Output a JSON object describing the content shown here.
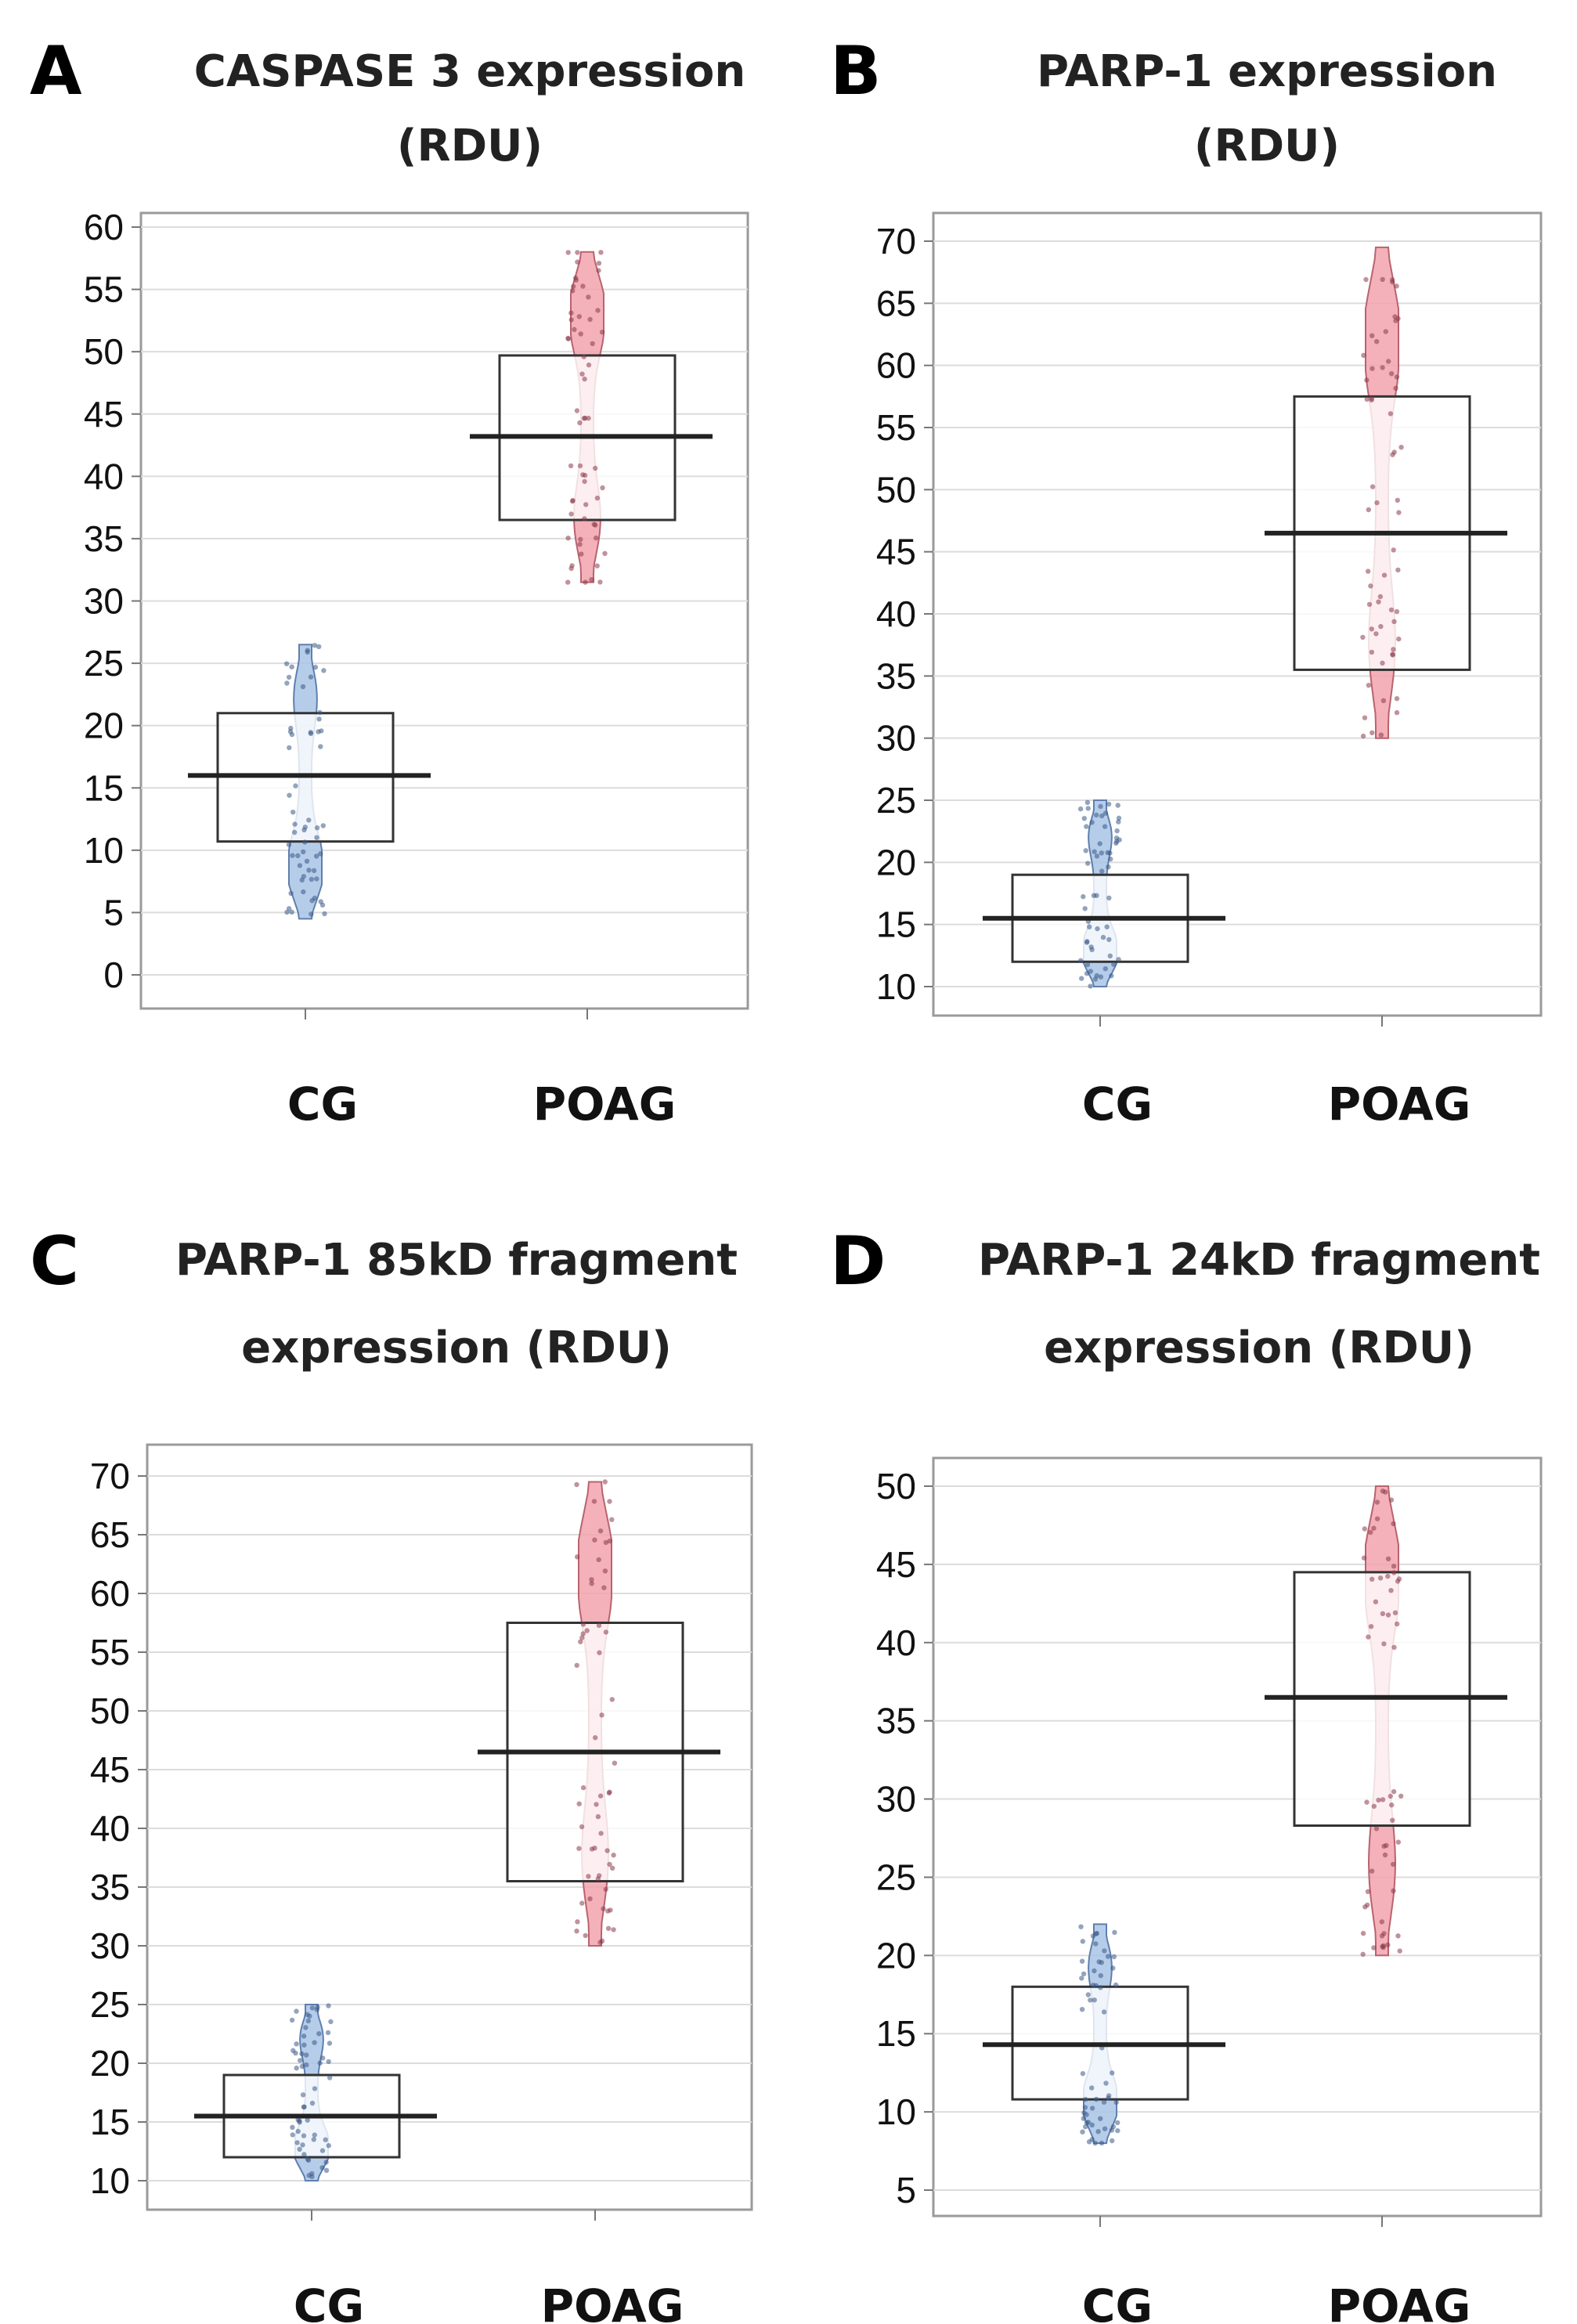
{
  "figure": {
    "colors": {
      "cg": "#a9c4e6",
      "poag": "#f2a3ad",
      "cg_pt": "#3b5a87",
      "poag_pt": "#8a3a4a"
    }
  },
  "chart_data": [
    {
      "id": "A",
      "type": "pirate",
      "letter": "A",
      "title_lines": [
        "CASPASE 3 expression",
        "(RDU)"
      ],
      "categories": [
        "CG",
        "POAG"
      ],
      "ylim": [
        0,
        60
      ],
      "yticks": [
        0,
        5,
        10,
        15,
        20,
        25,
        30,
        35,
        40,
        45,
        50,
        55,
        60
      ],
      "grid": true,
      "series": [
        {
          "name": "CG",
          "mean": 16,
          "box": [
            10.7,
            21
          ],
          "range": [
            4.5,
            26.5
          ]
        },
        {
          "name": "POAG",
          "mean": 43.2,
          "box": [
            36.5,
            49.7
          ],
          "range": [
            31.5,
            58
          ]
        }
      ]
    },
    {
      "id": "B",
      "type": "pirate",
      "letter": "B",
      "title_lines": [
        "PARP-1 expression",
        "(RDU)"
      ],
      "categories": [
        "CG",
        "POAG"
      ],
      "ylim": [
        10,
        70
      ],
      "yticks": [
        10,
        15,
        20,
        25,
        30,
        35,
        40,
        45,
        50,
        55,
        60,
        65,
        70
      ],
      "grid": true,
      "series": [
        {
          "name": "CG",
          "mean": 15.5,
          "box": [
            12,
            19
          ],
          "range": [
            10,
            25
          ]
        },
        {
          "name": "POAG",
          "mean": 46.5,
          "box": [
            35.5,
            57.5
          ],
          "range": [
            30,
            69.5
          ]
        }
      ]
    },
    {
      "id": "C",
      "type": "pirate",
      "letter": "C",
      "title_lines": [
        "PARP-1 85kD fragment",
        "expression (RDU)"
      ],
      "categories": [
        "CG",
        "POAG"
      ],
      "ylim": [
        10,
        70
      ],
      "yticks": [
        10,
        15,
        20,
        25,
        30,
        35,
        40,
        45,
        50,
        55,
        60,
        65,
        70
      ],
      "grid": true,
      "series": [
        {
          "name": "CG",
          "mean": 15.5,
          "box": [
            12,
            19
          ],
          "range": [
            10,
            25
          ]
        },
        {
          "name": "POAG",
          "mean": 46.5,
          "box": [
            35.5,
            57.5
          ],
          "range": [
            30,
            69.5
          ]
        }
      ]
    },
    {
      "id": "D",
      "type": "pirate",
      "letter": "D",
      "title_lines": [
        "PARP-1 24kD fragment",
        "expression (RDU)"
      ],
      "categories": [
        "CG",
        "POAG"
      ],
      "ylim": [
        5,
        50
      ],
      "yticks": [
        5,
        10,
        15,
        20,
        25,
        30,
        35,
        40,
        45,
        50
      ],
      "grid": true,
      "series": [
        {
          "name": "CG",
          "mean": 14.3,
          "box": [
            10.8,
            18
          ],
          "range": [
            8,
            22
          ]
        },
        {
          "name": "POAG",
          "mean": 36.5,
          "box": [
            28.3,
            44.5
          ],
          "range": [
            20,
            50
          ]
        }
      ]
    }
  ]
}
